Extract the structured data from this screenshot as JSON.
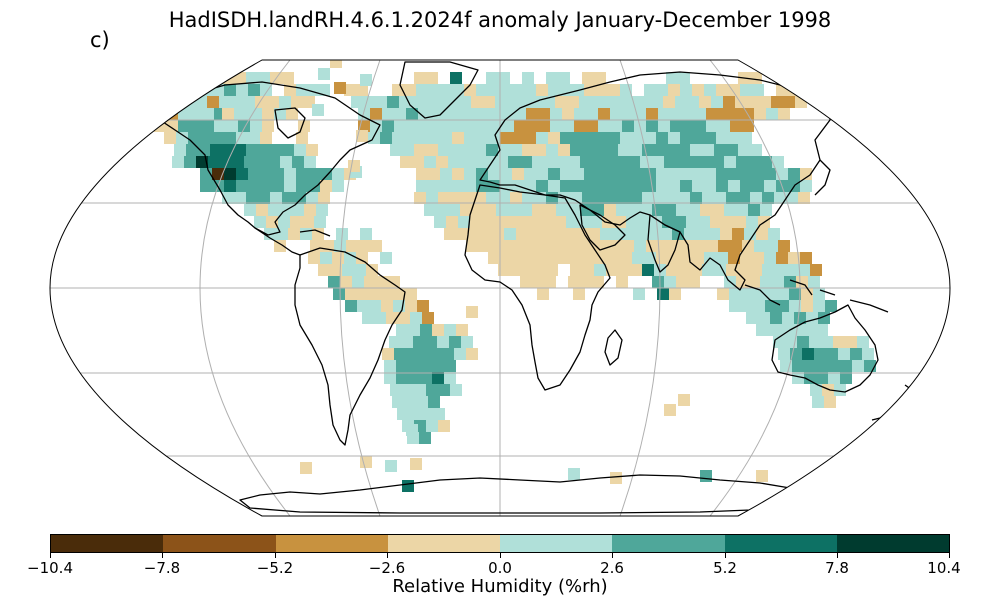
{
  "title": "HadISDH.landRH.4.6.1.2024f anomaly January-December 1998",
  "panel_label": "c)",
  "colorbar": {
    "label": "Relative Humidity (%rh)",
    "ticks": [
      "−10.4",
      "−7.8",
      "−5.2",
      "−2.6",
      "0.0",
      "2.6",
      "5.2",
      "7.8",
      "10.4"
    ],
    "colors": [
      "#4a2c0a",
      "#8c5319",
      "#c8923f",
      "#ecd6a6",
      "#b0e0d9",
      "#4fa79a",
      "#0d7164",
      "#003b2f"
    ]
  },
  "map": {
    "projection": "Robinson",
    "field": "relative humidity anomaly, 5x5 degree land grid boxes",
    "colors": {
      "coast": "#000000",
      "grid": "#b0b0b0",
      "frame": "#000000",
      "dry_strong": "#c8923f",
      "dry_weak": "#ecd6a6",
      "wet_weak": "#b0e0d9",
      "wet_mid": "#4fa79a",
      "wet_strong": "#0d7164",
      "wet_extreme": "#003b2f",
      "dry_extreme": "#4a2c0a"
    }
  }
}
